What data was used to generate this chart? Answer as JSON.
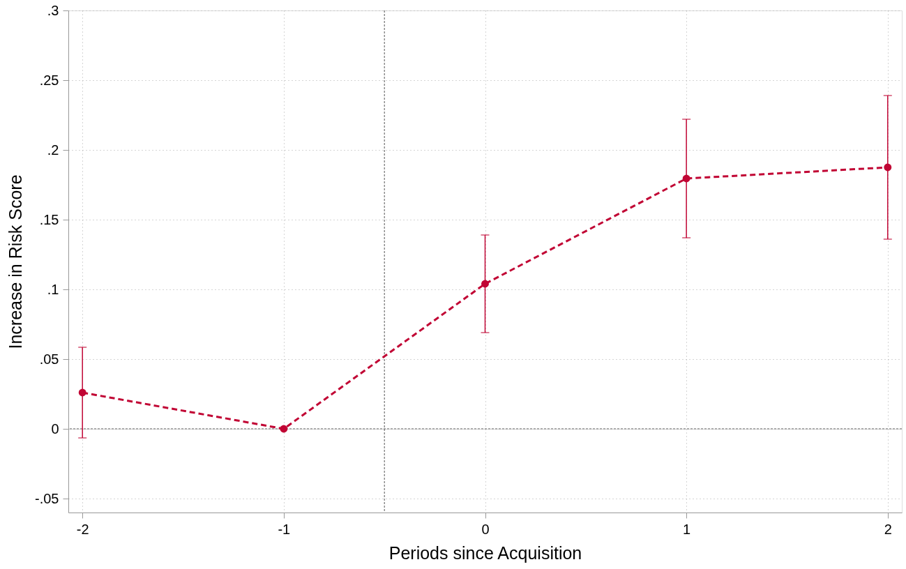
{
  "chart_data": {
    "type": "line",
    "xlabel": "Periods since Acquisition",
    "ylabel": "Increase in Risk Score",
    "x": [
      -2,
      -1,
      0,
      1,
      2
    ],
    "series": [
      {
        "color": "#c10534",
        "values": [
          0.026,
          0,
          0.104,
          0.1795,
          0.1875
        ],
        "errors": [
          [
            -0.0065,
            0.0585
          ],
          null,
          [
            0.069,
            0.139
          ],
          [
            0.137,
            0.222
          ],
          [
            0.136,
            0.239
          ]
        ]
      }
    ],
    "xlim": [
      -2.07,
      2.07
    ],
    "ylim": [
      -0.06,
      0.3
    ],
    "xticks": [
      -2,
      -1,
      0,
      1,
      2
    ],
    "yticks": [
      {
        "value": -0.05,
        "label": "-.05"
      },
      0,
      {
        "value": 0.05,
        "label": ".05"
      },
      {
        "value": 0.1,
        "label": ".1"
      },
      {
        "value": 0.15,
        "label": ".15"
      },
      {
        "value": 0.2,
        "label": ".2"
      },
      {
        "value": 0.25,
        "label": ".25"
      },
      {
        "value": 0.3,
        "label": ".3"
      }
    ],
    "ref_lines": [
      {
        "axis": "x",
        "value": -0.5,
        "color": "#555555",
        "line_style": "dashed"
      },
      {
        "axis": "y",
        "value": 0,
        "color": "#555555",
        "line_style": "dashed"
      }
    ],
    "grid": true,
    "marker": "circle",
    "line_style": "dashed"
  }
}
